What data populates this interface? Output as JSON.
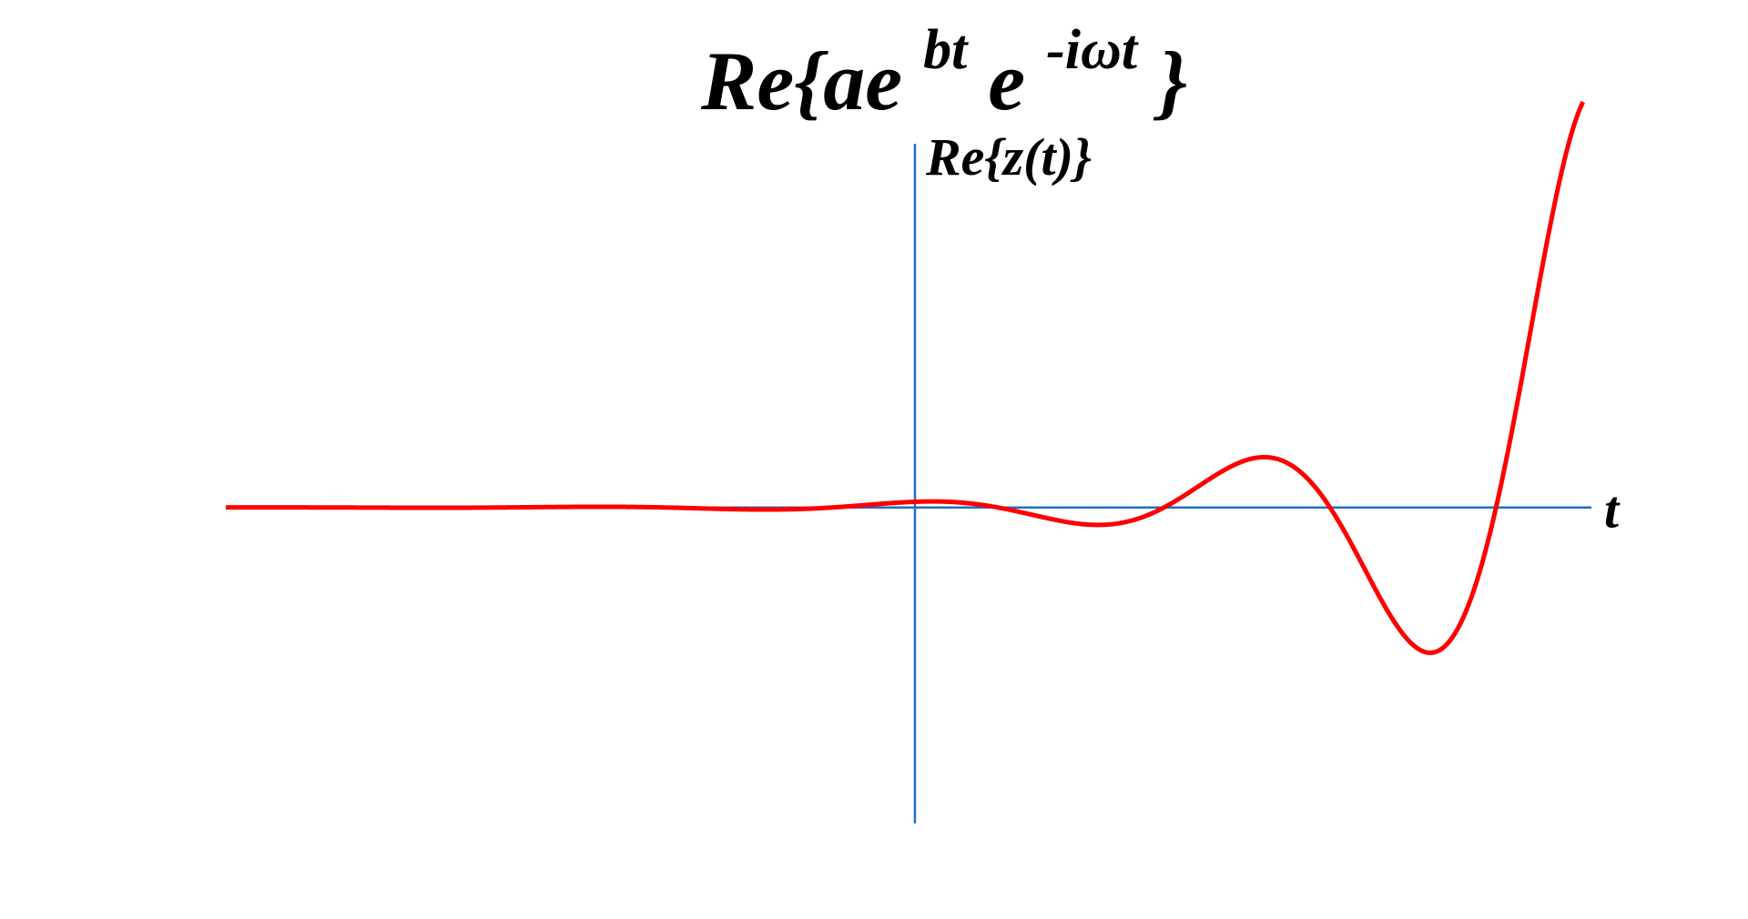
{
  "chart_data": {
    "type": "line",
    "title": {
      "prefix": "Re{ae",
      "superscript_1": "bt",
      "middle": "e",
      "superscript_2": "-iωt",
      "suffix": "}"
    },
    "ylabel": "Re{z(t)}",
    "xlabel": "t",
    "grid": false,
    "legend": "none",
    "colors": {
      "axis": "#1f6fc6",
      "curve": "#ff0000",
      "text": "#000000"
    },
    "series": [
      {
        "function": "a * exp(b*t) * cos(omega*t)",
        "a": 0.28,
        "b": 0.27,
        "omega": 0.8,
        "x_range": [
          -16.3,
          15.8
        ],
        "samples": 1200
      }
    ],
    "xlim": [
      -16.3,
      16.0
    ],
    "ylim": [
      -15.5,
      18.2
    ]
  }
}
